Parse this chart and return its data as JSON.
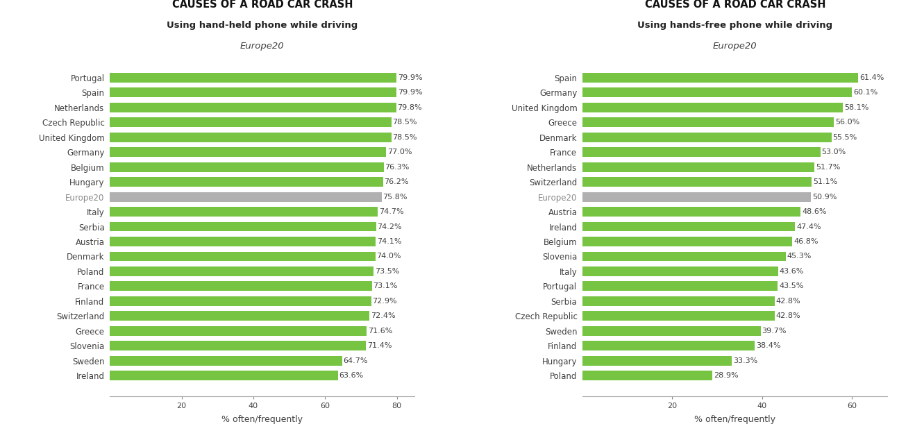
{
  "chart1": {
    "title": "CAUSES OF A ROAD CAR CRASH",
    "subtitle": "Using hand-held phone while driving",
    "axis_label": "Europe20",
    "xlabel": "% often/frequently",
    "categories": [
      "Portugal",
      "Spain",
      "Netherlands",
      "Czech Republic",
      "United Kingdom",
      "Germany",
      "Belgium",
      "Hungary",
      "Europe20",
      "Italy",
      "Serbia",
      "Austria",
      "Denmark",
      "Poland",
      "France",
      "Finland",
      "Switzerland",
      "Greece",
      "Slovenia",
      "Sweden",
      "Ireland"
    ],
    "values": [
      79.9,
      79.9,
      79.8,
      78.5,
      78.5,
      77.0,
      76.3,
      76.2,
      75.8,
      74.7,
      74.2,
      74.1,
      74.0,
      73.5,
      73.1,
      72.9,
      72.4,
      71.6,
      71.4,
      64.7,
      63.6
    ],
    "europe20_index": 8,
    "bar_color": "#76c442",
    "europe20_color": "#b0b0b0",
    "xlim_max": 85,
    "xticks": [
      20,
      40,
      60,
      80
    ]
  },
  "chart2": {
    "title": "CAUSES OF A ROAD CAR CRASH",
    "subtitle": "Using hands-free phone while driving",
    "axis_label": "Europe20",
    "xlabel": "% often/frequently",
    "categories": [
      "Spain",
      "Germany",
      "United Kingdom",
      "Greece",
      "Denmark",
      "France",
      "Netherlands",
      "Switzerland",
      "Europe20",
      "Austria",
      "Ireland",
      "Belgium",
      "Slovenia",
      "Italy",
      "Portugal",
      "Serbia",
      "Czech Republic",
      "Sweden",
      "Finland",
      "Hungary",
      "Poland"
    ],
    "values": [
      61.4,
      60.1,
      58.1,
      56.0,
      55.5,
      53.0,
      51.7,
      51.1,
      50.9,
      48.6,
      47.4,
      46.8,
      45.3,
      43.6,
      43.5,
      42.8,
      42.8,
      39.7,
      38.4,
      33.3,
      28.9
    ],
    "europe20_index": 8,
    "bar_color": "#76c442",
    "europe20_color": "#b0b0b0",
    "xlim_max": 68,
    "xticks": [
      20,
      40,
      60
    ]
  },
  "bg_color": "#ffffff",
  "text_color": "#404040",
  "europe20_label_color": "#888888",
  "title_fontsize": 10.5,
  "subtitle_fontsize": 9.5,
  "category_fontsize": 8.5,
  "value_fontsize": 8.0,
  "axis_label_fontsize": 9.5,
  "xlabel_fontsize": 9.0
}
